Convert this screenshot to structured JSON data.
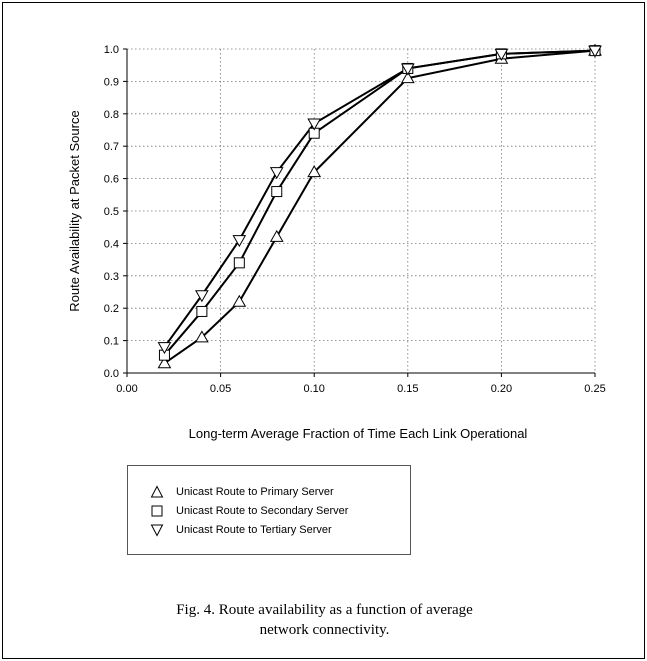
{
  "chart_data": {
    "type": "line",
    "xlabel": "Long-term Average Fraction of Time Each Link Operational",
    "ylabel": "Route Availability at Packet Source",
    "xlim": [
      0.0,
      0.25
    ],
    "ylim": [
      0.0,
      1.0
    ],
    "x_ticks": [
      "0.00",
      "0.05",
      "0.10",
      "0.15",
      "0.20",
      "0.25"
    ],
    "y_ticks": [
      "0.0",
      "0.1",
      "0.2",
      "0.3",
      "0.4",
      "0.5",
      "0.6",
      "0.7",
      "0.8",
      "0.9",
      "1.0"
    ],
    "grid": "dotted",
    "legend_position": "below",
    "series": [
      {
        "name": "Unicast Route to Primary Server",
        "marker": "triangle-up",
        "x": [
          0.02,
          0.04,
          0.06,
          0.08,
          0.1,
          0.15,
          0.2,
          0.25
        ],
        "y": [
          0.03,
          0.11,
          0.22,
          0.42,
          0.62,
          0.91,
          0.97,
          0.995
        ]
      },
      {
        "name": "Unicast Route to Secondary Server",
        "marker": "square",
        "x": [
          0.02,
          0.04,
          0.06,
          0.08,
          0.1,
          0.15,
          0.2,
          0.25
        ],
        "y": [
          0.055,
          0.19,
          0.34,
          0.56,
          0.74,
          0.94,
          0.985,
          0.995
        ]
      },
      {
        "name": "Unicast Route to Tertiary Server",
        "marker": "triangle-down",
        "x": [
          0.02,
          0.04,
          0.06,
          0.08,
          0.1,
          0.15,
          0.2,
          0.25
        ],
        "y": [
          0.08,
          0.24,
          0.41,
          0.62,
          0.77,
          0.94,
          0.985,
          0.995
        ]
      }
    ]
  },
  "caption": {
    "line1": "Fig. 4. Route availability as a function of average",
    "line2": "network connectivity."
  }
}
